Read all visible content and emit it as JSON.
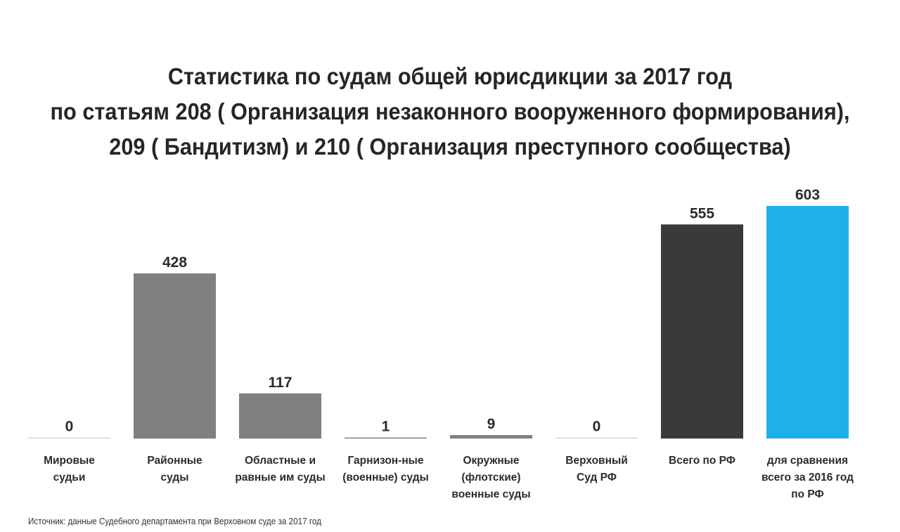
{
  "title_lines": [
    "Статистика по судам общей юрисдикции за 2017 год",
    "по  статьям 208 ( Организация незаконного вооруженного формирования),",
    "209 ( Бандитизм) и 210 ( Организация преступного сообщества)"
  ],
  "source": "Источник: данные Судебного департамента при Верховном суде за 2017 год",
  "chart_data": {
    "type": "bar",
    "categories": [
      [
        "Мировые",
        "судьи"
      ],
      [
        "Районные",
        "суды"
      ],
      [
        "Областные и",
        "равные им суды"
      ],
      [
        "Гарнизон-ные",
        "(военные) суды"
      ],
      [
        "Окружные",
        "(флотские)",
        "военные суды"
      ],
      [
        "Верховный",
        "Суд РФ"
      ],
      [
        "Всего по РФ"
      ],
      [
        "для сравнения",
        "всего за 2016 год",
        "по РФ"
      ]
    ],
    "values": [
      0,
      428,
      117,
      1,
      9,
      0,
      555,
      603
    ],
    "colors": [
      "#808080",
      "#808080",
      "#808080",
      "#808080",
      "#808080",
      "#808080",
      "#3a3a3c",
      "#1fb0ea"
    ],
    "ylim": [
      0,
      603
    ],
    "grid": false,
    "legend": "none"
  }
}
